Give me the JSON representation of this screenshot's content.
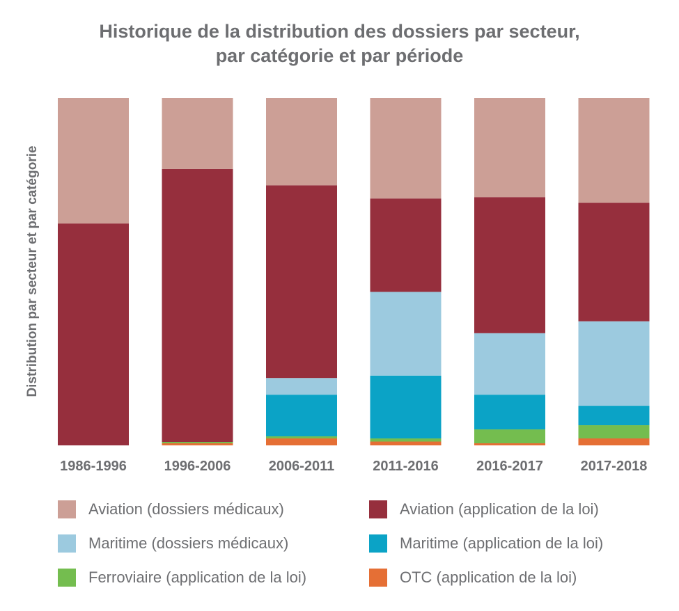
{
  "chart_data": {
    "type": "bar",
    "stacked": true,
    "normalized": true,
    "title_lines": [
      "Historique de la distribution des dossiers par secteur,",
      "par catégorie et par période"
    ],
    "xlabel": "",
    "ylabel": "Distribution par secteur et par catégorie",
    "ylim": [
      0,
      100
    ],
    "grid": false,
    "legend_position": "bottom",
    "categories": [
      "1986-1996",
      "1996-2006",
      "2006-2011",
      "2011-2016",
      "2016-2017",
      "2017-2018"
    ],
    "series": [
      {
        "name": "OTC (application de la loi)",
        "color": "#e56f35",
        "values": [
          0,
          0.6,
          2.0,
          1.1,
          0.6,
          2.0
        ]
      },
      {
        "name": "Ferroviaire (application de la loi)",
        "color": "#74bd4f",
        "values": [
          0,
          0.4,
          0.6,
          0.9,
          4.0,
          3.8
        ]
      },
      {
        "name": "Maritime (application de la loi)",
        "color": "#0ba3c6",
        "values": [
          0,
          0,
          12.0,
          18.1,
          10.0,
          5.6
        ]
      },
      {
        "name": "Maritime (dossiers médicaux)",
        "color": "#9ccadf",
        "values": [
          0,
          0,
          4.8,
          24.1,
          17.7,
          24.3
        ]
      },
      {
        "name": "Aviation (application de la loi)",
        "color": "#962f3d",
        "values": [
          63.9,
          78.6,
          55.5,
          26.9,
          39.2,
          34.1
        ]
      },
      {
        "name": "Aviation (dossiers médicaux)",
        "color": "#cc9f96",
        "values": [
          36.1,
          20.4,
          25.1,
          28.9,
          28.5,
          30.1
        ]
      }
    ],
    "legend_order": [
      5,
      4,
      3,
      2,
      1,
      0
    ]
  }
}
